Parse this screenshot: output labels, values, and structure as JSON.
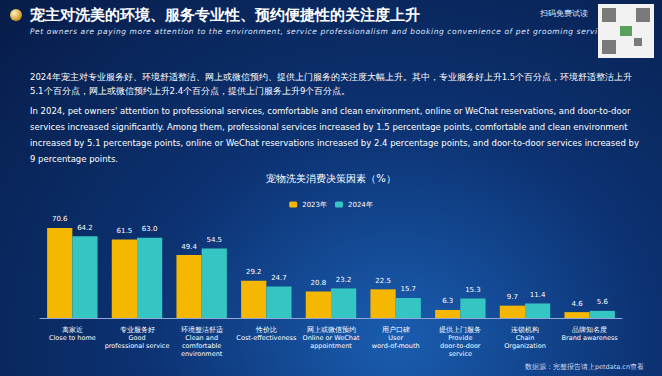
{
  "header": {
    "title": "宠主对洗美的环境、服务专业性、预约便捷性的关注度上升",
    "subtitle": "Pet owners are paying more attention to the environment, service professionalism and booking convenience of pet grooming services",
    "corner_text": "扫码免费试读",
    "paragraph_zh": "2024年宠主对专业服务好、环境舒适整洁、网上或微信预约、提供上门服务的关注度大幅上升。其中，专业服务好上升1.5个百分点，环境舒适整洁上升5.1个百分点，网上或微信预约上升2.4个百分点，提供上门服务上升9个百分点。",
    "paragraph_en": "In 2024, pet owners' attention to professional services, comfortable and clean environment, online or WeChat reservations, and door-to-door services increased significantly. Among them, professional services increased by 1.5 percentage points, comfortable and clean environment increased by 5.1 percentage points, online or WeChat reservations increased by 2.4 percentage points, and door-to-door services increased by 9 percentage points."
  },
  "chart_data": {
    "type": "bar",
    "title": "宠物洗美消费决策因素（%）",
    "categories": [
      "离家近\nClose to home",
      "专业服务好\nGood\nprofessional service",
      "环境整洁舒适\nClean and\ncomfortable\nenvironment",
      "性价比\nCost-effectiveness",
      "网上或微信预约\nOnline or WeChat\nappointment",
      "用户口碑\nUser\nword-of-mouth",
      "提供上门服务\nProvide\ndoor-to-door\nservice",
      "连锁机构\nChain\nOrganization",
      "品牌知名度\nBrand awareness"
    ],
    "series": [
      {
        "name": "2023年",
        "color": "#f5b700",
        "values": [
          70.6,
          61.5,
          49.4,
          29.2,
          20.8,
          22.5,
          6.3,
          9.7,
          4.6
        ],
        "value_labels": [
          "70.6",
          "61.5",
          "49.4",
          "29.2",
          "20.8",
          "22.5",
          "6.3",
          "9.7",
          "4.6"
        ]
      },
      {
        "name": "2024年",
        "color": "#35c6c4",
        "values": [
          64.2,
          63.0,
          54.5,
          24.7,
          23.2,
          15.7,
          15.3,
          11.4,
          5.6
        ],
        "value_labels": [
          "64.2",
          "63.0",
          "54.5",
          "24.7",
          "23.2",
          "15.7",
          "15.3",
          "11.4",
          "5.6"
        ]
      }
    ],
    "ylim": [
      0,
      80
    ],
    "data_labels": true,
    "tick_labels": "x",
    "grid": false,
    "legend": "top"
  },
  "footer": "数据源：完整报告请上petdata.cn查看"
}
